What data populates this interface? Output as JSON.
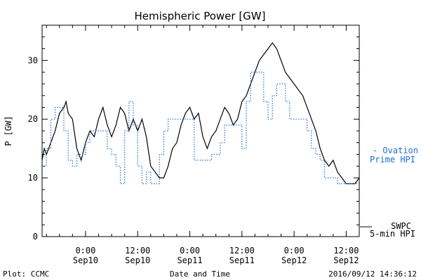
{
  "chart_data": {
    "type": "line",
    "title": "Hemispheric Power [GW]",
    "ylabel": "P [GW]",
    "xlabel": "Date and Time",
    "ylim": [
      0,
      36
    ],
    "yticks": [
      0,
      10,
      20,
      30
    ],
    "xlim_hours_range": [
      "Sep 09 ~14:00",
      "Sep 12 ~15:00"
    ],
    "xticks": [
      {
        "time": "0:00",
        "date": "Sep10"
      },
      {
        "time": "12:00",
        "date": "Sep10"
      },
      {
        "time": "0:00",
        "date": "Sep11"
      },
      {
        "time": "12:00",
        "date": "Sep11"
      },
      {
        "time": "0:00",
        "date": "Sep12"
      },
      {
        "time": "12:00",
        "date": "Sep12"
      }
    ],
    "series": [
      {
        "name": "SWPC 5-min HPI",
        "legend_lines": [
          "SWPC",
          "5-min HPI"
        ],
        "color": "#000000",
        "style": "solid",
        "points": [
          [
            "2016-09-09 14:00",
            13
          ],
          [
            "2016-09-09 14:30",
            15
          ],
          [
            "2016-09-09 15:00",
            14
          ],
          [
            "2016-09-09 16:00",
            16
          ],
          [
            "2016-09-09 17:00",
            18
          ],
          [
            "2016-09-09 18:00",
            21
          ],
          [
            "2016-09-09 19:00",
            22
          ],
          [
            "2016-09-09 19:30",
            23
          ],
          [
            "2016-09-09 20:00",
            21
          ],
          [
            "2016-09-09 21:00",
            20
          ],
          [
            "2016-09-09 22:00",
            15
          ],
          [
            "2016-09-09 23:00",
            13
          ],
          [
            "2016-09-10 00:00",
            16
          ],
          [
            "2016-09-10 01:00",
            18
          ],
          [
            "2016-09-10 02:00",
            17
          ],
          [
            "2016-09-10 03:00",
            20
          ],
          [
            "2016-09-10 04:00",
            22
          ],
          [
            "2016-09-10 05:00",
            19
          ],
          [
            "2016-09-10 06:00",
            17
          ],
          [
            "2016-09-10 07:00",
            19
          ],
          [
            "2016-09-10 08:00",
            22
          ],
          [
            "2016-09-10 09:00",
            21
          ],
          [
            "2016-09-10 10:00",
            18
          ],
          [
            "2016-09-10 11:00",
            20
          ],
          [
            "2016-09-10 12:00",
            18
          ],
          [
            "2016-09-10 13:00",
            20
          ],
          [
            "2016-09-10 14:00",
            17
          ],
          [
            "2016-09-10 15:00",
            12
          ],
          [
            "2016-09-10 16:00",
            11
          ],
          [
            "2016-09-10 17:00",
            10
          ],
          [
            "2016-09-10 18:00",
            10
          ],
          [
            "2016-09-10 19:00",
            12
          ],
          [
            "2016-09-10 20:00",
            15
          ],
          [
            "2016-09-10 21:00",
            16
          ],
          [
            "2016-09-10 22:00",
            19
          ],
          [
            "2016-09-10 23:00",
            21
          ],
          [
            "2016-09-11 00:00",
            22
          ],
          [
            "2016-09-11 01:00",
            20
          ],
          [
            "2016-09-11 02:00",
            21
          ],
          [
            "2016-09-11 03:00",
            17
          ],
          [
            "2016-09-11 04:00",
            15
          ],
          [
            "2016-09-11 05:00",
            17
          ],
          [
            "2016-09-11 06:00",
            18
          ],
          [
            "2016-09-11 07:00",
            20
          ],
          [
            "2016-09-11 08:00",
            22
          ],
          [
            "2016-09-11 09:00",
            21
          ],
          [
            "2016-09-11 10:00",
            19
          ],
          [
            "2016-09-11 11:00",
            20
          ],
          [
            "2016-09-11 12:00",
            23
          ],
          [
            "2016-09-11 13:00",
            24
          ],
          [
            "2016-09-11 14:00",
            26
          ],
          [
            "2016-09-11 15:00",
            28
          ],
          [
            "2016-09-11 16:00",
            30
          ],
          [
            "2016-09-11 17:00",
            31
          ],
          [
            "2016-09-11 18:00",
            32
          ],
          [
            "2016-09-11 19:00",
            33
          ],
          [
            "2016-09-11 20:00",
            32
          ],
          [
            "2016-09-11 21:00",
            30
          ],
          [
            "2016-09-11 22:00",
            28
          ],
          [
            "2016-09-11 23:00",
            27
          ],
          [
            "2016-09-12 00:00",
            26
          ],
          [
            "2016-09-12 01:00",
            25
          ],
          [
            "2016-09-12 02:00",
            24
          ],
          [
            "2016-09-12 03:00",
            22
          ],
          [
            "2016-09-12 04:00",
            20
          ],
          [
            "2016-09-12 05:00",
            18
          ],
          [
            "2016-09-12 06:00",
            15
          ],
          [
            "2016-09-12 07:00",
            13
          ],
          [
            "2016-09-12 08:00",
            12
          ],
          [
            "2016-09-12 09:00",
            13
          ],
          [
            "2016-09-12 10:00",
            11
          ],
          [
            "2016-09-12 11:00",
            10
          ],
          [
            "2016-09-12 12:00",
            9
          ],
          [
            "2016-09-12 13:00",
            9
          ],
          [
            "2016-09-12 14:00",
            9
          ],
          [
            "2016-09-12 15:00",
            10
          ]
        ]
      },
      {
        "name": "Ovation Prime HPI",
        "legend_lines": [
          "- Ovation",
          "Prime HPI"
        ],
        "color": "#1f6fd1",
        "style": "dotted",
        "points": [
          [
            "2016-09-09 14:00",
            12
          ],
          [
            "2016-09-09 15:00",
            15
          ],
          [
            "2016-09-09 16:00",
            20
          ],
          [
            "2016-09-09 17:00",
            22
          ],
          [
            "2016-09-09 18:00",
            22
          ],
          [
            "2016-09-09 19:00",
            18
          ],
          [
            "2016-09-09 20:00",
            13
          ],
          [
            "2016-09-09 21:00",
            12
          ],
          [
            "2016-09-09 22:00",
            14
          ],
          [
            "2016-09-09 23:00",
            14
          ],
          [
            "2016-09-10 00:00",
            16
          ],
          [
            "2016-09-10 01:00",
            18
          ],
          [
            "2016-09-10 02:00",
            18
          ],
          [
            "2016-09-10 03:00",
            18
          ],
          [
            "2016-09-10 04:00",
            18
          ],
          [
            "2016-09-10 05:00",
            15
          ],
          [
            "2016-09-10 06:00",
            14
          ],
          [
            "2016-09-10 07:00",
            12
          ],
          [
            "2016-09-10 08:00",
            9
          ],
          [
            "2016-09-10 09:00",
            18
          ],
          [
            "2016-09-10 10:00",
            23
          ],
          [
            "2016-09-10 11:00",
            19
          ],
          [
            "2016-09-10 12:00",
            12
          ],
          [
            "2016-09-10 13:00",
            9
          ],
          [
            "2016-09-10 14:00",
            11
          ],
          [
            "2016-09-10 15:00",
            9
          ],
          [
            "2016-09-10 16:00",
            9
          ],
          [
            "2016-09-10 17:00",
            14
          ],
          [
            "2016-09-10 18:00",
            18
          ],
          [
            "2016-09-10 19:00",
            20
          ],
          [
            "2016-09-10 20:00",
            20
          ],
          [
            "2016-09-10 21:00",
            20
          ],
          [
            "2016-09-10 22:00",
            20
          ],
          [
            "2016-09-10 23:00",
            20
          ],
          [
            "2016-09-11 00:00",
            20
          ],
          [
            "2016-09-11 01:00",
            13
          ],
          [
            "2016-09-11 02:00",
            13
          ],
          [
            "2016-09-11 03:00",
            13
          ],
          [
            "2016-09-11 04:00",
            13
          ],
          [
            "2016-09-11 05:00",
            14
          ],
          [
            "2016-09-11 06:00",
            14
          ],
          [
            "2016-09-11 07:00",
            16
          ],
          [
            "2016-09-11 08:00",
            19
          ],
          [
            "2016-09-11 09:00",
            19
          ],
          [
            "2016-09-11 10:00",
            19
          ],
          [
            "2016-09-11 11:00",
            19
          ],
          [
            "2016-09-11 12:00",
            15
          ],
          [
            "2016-09-11 13:00",
            23
          ],
          [
            "2016-09-11 14:00",
            28
          ],
          [
            "2016-09-11 15:00",
            28
          ],
          [
            "2016-09-11 16:00",
            28
          ],
          [
            "2016-09-11 17:00",
            23
          ],
          [
            "2016-09-11 18:00",
            20
          ],
          [
            "2016-09-11 19:00",
            24
          ],
          [
            "2016-09-11 20:00",
            26
          ],
          [
            "2016-09-11 21:00",
            26
          ],
          [
            "2016-09-11 22:00",
            23
          ],
          [
            "2016-09-11 23:00",
            20
          ],
          [
            "2016-09-12 00:00",
            20
          ],
          [
            "2016-09-12 01:00",
            20
          ],
          [
            "2016-09-12 02:00",
            20
          ],
          [
            "2016-09-12 03:00",
            18
          ],
          [
            "2016-09-12 04:00",
            15
          ],
          [
            "2016-09-12 05:00",
            14
          ],
          [
            "2016-09-12 06:00",
            13
          ],
          [
            "2016-09-12 07:00",
            10
          ],
          [
            "2016-09-12 08:00",
            10
          ],
          [
            "2016-09-12 09:00",
            10
          ],
          [
            "2016-09-12 10:00",
            9
          ],
          [
            "2016-09-12 11:00",
            9
          ],
          [
            "2016-09-12 12:00",
            9
          ],
          [
            "2016-09-12 13:00",
            9
          ],
          [
            "2016-09-12 14:00",
            9
          ],
          [
            "2016-09-12 15:00",
            9
          ]
        ]
      }
    ],
    "legend_placement": "right-outside",
    "grid": false
  },
  "footer": {
    "left": "Plot: CCMC",
    "center": "Date and Time",
    "right": "2016/09/12 14:36:12"
  }
}
